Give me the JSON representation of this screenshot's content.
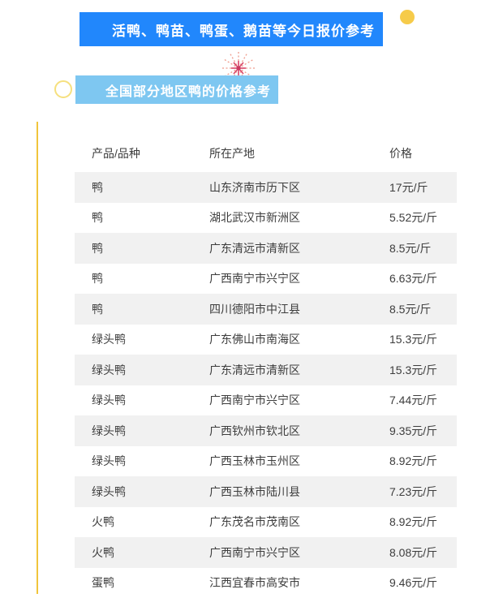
{
  "header": {
    "title": "活鸭、鸭苗、鸭蛋、鹅苗等今日报价参考",
    "banner_color": "#2187FC",
    "text_color": "#FFFFFF"
  },
  "section": {
    "title": "全国部分地区鸭的价格参考",
    "banner_color": "#7EC7F1",
    "text_color": "#FFFFFF"
  },
  "decorations": {
    "dot_icon_color": "#F6CB4A",
    "ring_icon_color": "#F6E07E",
    "accent_line_color": "#F0C53C",
    "firework_icon_colors": [
      "#EF9B8B",
      "#D9476B",
      "#C93A60"
    ]
  },
  "table": {
    "columns": [
      "产品/品种",
      "所在产地",
      "价格"
    ],
    "alt_row_color": "#F1F1F1",
    "text_color": "#3D3D3D",
    "rows": [
      [
        "鸭",
        "山东济南市历下区",
        "17元/斤"
      ],
      [
        "鸭",
        "湖北武汉市新洲区",
        "5.52元/斤"
      ],
      [
        "鸭",
        "广东清远市清新区",
        "8.5元/斤"
      ],
      [
        "鸭",
        "广西南宁市兴宁区",
        "6.63元/斤"
      ],
      [
        "鸭",
        "四川德阳市中江县",
        "8.5元/斤"
      ],
      [
        "绿头鸭",
        "广东佛山市南海区",
        "15.3元/斤"
      ],
      [
        "绿头鸭",
        "广东清远市清新区",
        "15.3元/斤"
      ],
      [
        "绿头鸭",
        "广西南宁市兴宁区",
        "7.44元/斤"
      ],
      [
        "绿头鸭",
        "广西钦州市钦北区",
        "9.35元/斤"
      ],
      [
        "绿头鸭",
        "广西玉林市玉州区",
        "8.92元/斤"
      ],
      [
        "绿头鸭",
        "广西玉林市陆川县",
        "7.23元/斤"
      ],
      [
        "火鸭",
        "广东茂名市茂南区",
        "8.92元/斤"
      ],
      [
        "火鸭",
        "广西南宁市兴宁区",
        "8.08元/斤"
      ],
      [
        "蛋鸭",
        "江西宜春市高安市",
        "9.46元/斤"
      ]
    ]
  }
}
